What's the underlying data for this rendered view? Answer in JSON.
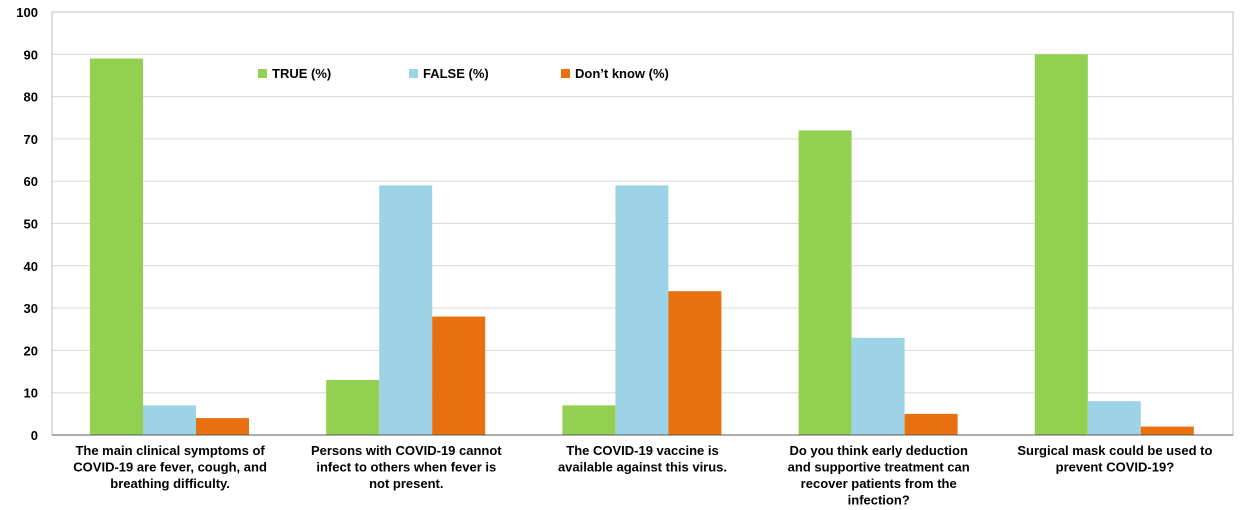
{
  "chart_data": {
    "type": "bar",
    "categories": [
      "The main clinical symptoms of COVID-19 are fever, cough, and breathing difficulty.",
      "Persons with COVID-19 cannot infect to others when fever is not present.",
      "The COVID-19 vaccine is available against this virus.",
      "Do you think early deduction and supportive treatment can recover patients from the infection?",
      "Surgical mask could be used to prevent COVID-19?"
    ],
    "category_lines": [
      [
        "The main clinical symptoms of",
        "COVID-19 are fever, cough, and",
        "breathing difficulty."
      ],
      [
        "Persons with COVID-19 cannot",
        "infect to others when fever is",
        "not present."
      ],
      [
        "The COVID-19 vaccine is",
        "available against this virus."
      ],
      [
        "Do you think early deduction",
        "and supportive treatment can",
        "recover patients from the",
        "infection?"
      ],
      [
        "Surgical mask could be used to",
        "prevent COVID-19?"
      ]
    ],
    "series": [
      {
        "name": "TRUE (%)",
        "color": "#92d050",
        "values": [
          89,
          13,
          7,
          72,
          90
        ]
      },
      {
        "name": "FALSE (%)",
        "color": "#9dd3e6",
        "values": [
          7,
          59,
          59,
          23,
          8
        ]
      },
      {
        "name": "Don’t know (%)",
        "color": "#e8700e",
        "values": [
          4,
          28,
          34,
          5,
          2
        ]
      }
    ],
    "ylim": [
      0,
      100
    ],
    "yticks": [
      "0",
      "10",
      "20",
      "30",
      "40",
      "50",
      "60",
      "70",
      "80",
      "90",
      "100"
    ],
    "grid": true,
    "legend_position": "top-center"
  }
}
